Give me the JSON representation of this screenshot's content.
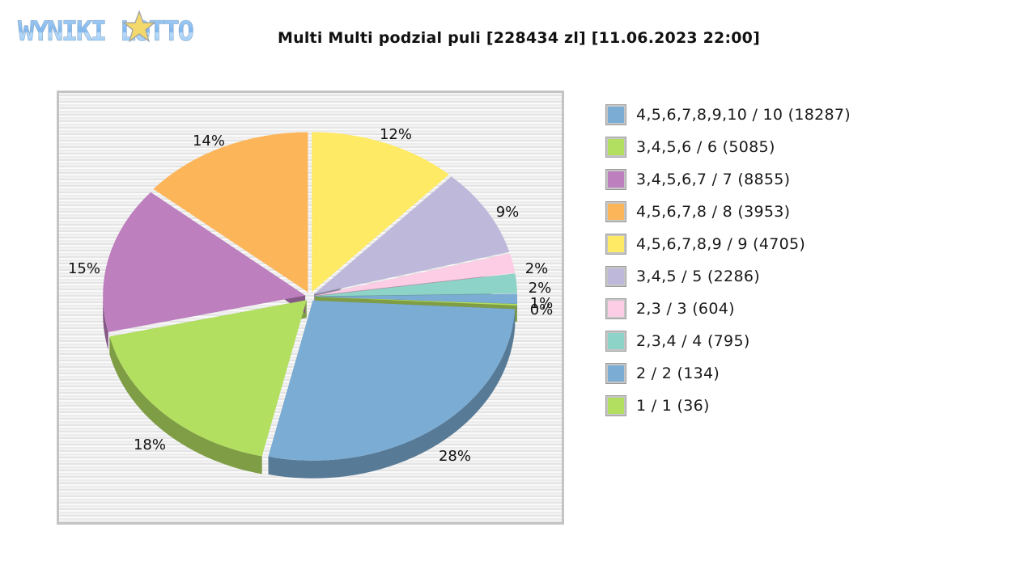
{
  "logo": {
    "text": "WYNIKI LOTTO",
    "icon": "star-icon"
  },
  "chart_data": {
    "type": "pie",
    "title": "Multi Multi podzial puli [228434 zl] [11.06.2023 22:00]",
    "style": "3d-exploded",
    "legend_position": "right",
    "slices": [
      {
        "label": "4,5,6,7,8,9,10 / 10 (18287)",
        "percent": 28,
        "pct_label": "28%",
        "color": "#7bacd4",
        "dark": "#577a96"
      },
      {
        "label": "3,4,5,6 / 6 (5085)",
        "percent": 18,
        "pct_label": "18%",
        "color": "#b2df60",
        "dark": "#7e9d44"
      },
      {
        "label": "3,4,5,6,7 / 7 (8855)",
        "percent": 15,
        "pct_label": "15%",
        "color": "#bd7fbe",
        "dark": "#865a87"
      },
      {
        "label": "4,5,6,7,8 / 8 (3953)",
        "percent": 14,
        "pct_label": "14%",
        "color": "#fdb55a",
        "dark": "#b48040"
      },
      {
        "label": "4,5,6,7,8,9 / 9 (4705)",
        "percent": 12,
        "pct_label": "12%",
        "color": "#ffea66",
        "dark": "#b5a648"
      },
      {
        "label": "3,4,5 / 5 (2286)",
        "percent": 9,
        "pct_label": "9%",
        "color": "#beb9da",
        "dark": "#87839b"
      },
      {
        "label": "2,3 / 3 (604)",
        "percent": 2,
        "pct_label": "2%",
        "color": "#fccde5",
        "dark": "#b391a2"
      },
      {
        "label": "2,3,4 / 4 (795)",
        "percent": 2,
        "pct_label": "2%",
        "color": "#8dd3c7",
        "dark": "#64968d"
      },
      {
        "label": "2 / 2 (134)",
        "percent": 1,
        "pct_label": "1%",
        "color": "#7bacd4",
        "dark": "#577a96"
      },
      {
        "label": "1 / 1 (36)",
        "percent": 0,
        "pct_label": "0%",
        "color": "#b2df60",
        "dark": "#7e9d44"
      }
    ]
  }
}
